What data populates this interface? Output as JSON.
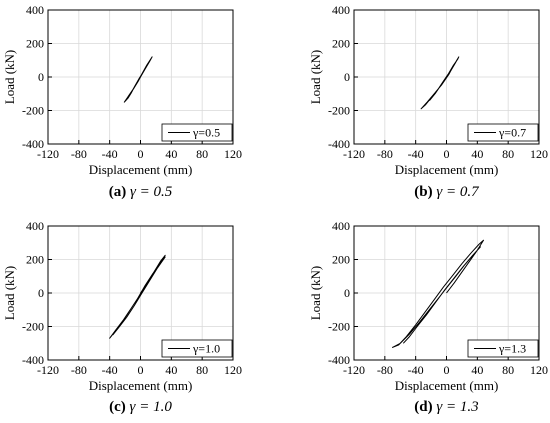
{
  "chart_data": [
    {
      "type": "line",
      "caption_letter": "(a)",
      "caption_rest": " γ = 0.5",
      "xlabel": "Displacement (mm)",
      "ylabel": "Load (kN)",
      "xlim": [
        -120,
        120
      ],
      "ylim": [
        -400,
        400
      ],
      "xticks": [
        -120,
        -80,
        -40,
        0,
        40,
        80,
        120
      ],
      "yticks": [
        -400,
        -200,
        0,
        200,
        400
      ],
      "grid": true,
      "legend_position": "bottom-right",
      "series": [
        {
          "name": "γ=0.5",
          "x": [
            0,
            5,
            10,
            15,
            12,
            5,
            -2,
            -8,
            -12,
            -16,
            -21,
            -18,
            -10,
            -4,
            2,
            8,
            13,
            15,
            9,
            3,
            -3,
            -9,
            -14
          ],
          "y": [
            0,
            40,
            80,
            120,
            95,
            40,
            -10,
            -60,
            -95,
            -125,
            -150,
            -130,
            -75,
            -30,
            20,
            70,
            105,
            120,
            75,
            25,
            -25,
            -70,
            -105
          ]
        }
      ]
    },
    {
      "type": "line",
      "caption_letter": "(b)",
      "caption_rest": " γ = 0.7",
      "xlabel": "Displacement (mm)",
      "ylabel": "Load (kN)",
      "xlim": [
        -120,
        120
      ],
      "ylim": [
        -400,
        400
      ],
      "xticks": [
        -120,
        -80,
        -40,
        0,
        40,
        80,
        120
      ],
      "yticks": [
        -400,
        -200,
        0,
        200,
        400
      ],
      "grid": true,
      "legend_position": "bottom-right",
      "series": [
        {
          "name": "γ=0.7",
          "x": [
            0,
            6,
            11,
            16,
            12,
            4,
            -4,
            -12,
            -20,
            -27,
            -33,
            -25,
            -15,
            -6,
            3,
            10,
            15,
            9,
            2,
            -6,
            -14,
            -22
          ],
          "y": [
            0,
            40,
            80,
            120,
            90,
            30,
            -25,
            -80,
            -125,
            -165,
            -190,
            -150,
            -95,
            -45,
            15,
            75,
            110,
            70,
            15,
            -40,
            -95,
            -140
          ]
        }
      ]
    },
    {
      "type": "line",
      "caption_letter": "(c)",
      "caption_rest": " γ = 1.0",
      "xlabel": "Displacement (mm)",
      "ylabel": "Load (kN)",
      "xlim": [
        -120,
        120
      ],
      "ylim": [
        -400,
        400
      ],
      "xticks": [
        -120,
        -80,
        -40,
        0,
        40,
        80,
        120
      ],
      "yticks": [
        -400,
        -200,
        0,
        200,
        400
      ],
      "grid": true,
      "legend_position": "bottom-right",
      "series": [
        {
          "name": "γ=1.0",
          "x": [
            0,
            8,
            16,
            24,
            32,
            26,
            18,
            8,
            -2,
            -12,
            -22,
            -32,
            -40,
            -34,
            -24,
            -14,
            -4,
            6,
            16,
            26,
            32,
            22,
            12,
            2,
            -8,
            -18,
            -28,
            -36
          ],
          "y": [
            0,
            55,
            110,
            165,
            225,
            190,
            130,
            55,
            -20,
            -90,
            -160,
            -220,
            -270,
            -235,
            -175,
            -105,
            -35,
            45,
            115,
            180,
            215,
            150,
            75,
            0,
            -75,
            -145,
            -205,
            -250
          ]
        }
      ]
    },
    {
      "type": "line",
      "caption_letter": "(d)",
      "caption_rest": " γ = 1.3",
      "xlabel": "Displacement (mm)",
      "ylabel": "Load (kN)",
      "xlim": [
        -120,
        120
      ],
      "ylim": [
        -400,
        400
      ],
      "xticks": [
        -120,
        -80,
        -40,
        0,
        40,
        80,
        120
      ],
      "yticks": [
        -400,
        -200,
        0,
        200,
        400
      ],
      "grid": true,
      "legend_position": "bottom-right",
      "series": [
        {
          "name": "γ=1.3",
          "x": [
            0,
            10,
            20,
            30,
            40,
            48,
            42,
            32,
            20,
            8,
            -4,
            -16,
            -28,
            -40,
            -52,
            -62,
            -70,
            -60,
            -48,
            -36,
            -24,
            -12,
            0,
            12,
            24,
            36,
            44,
            34,
            22,
            10,
            -2,
            -14,
            -26,
            -38,
            -48,
            -56
          ],
          "y": [
            0,
            60,
            125,
            190,
            255,
            315,
            290,
            240,
            175,
            105,
            35,
            -40,
            -115,
            -190,
            -260,
            -310,
            -325,
            -300,
            -245,
            -180,
            -110,
            -40,
            30,
            100,
            170,
            235,
            275,
            225,
            160,
            90,
            20,
            -55,
            -130,
            -200,
            -260,
            -300
          ]
        }
      ]
    }
  ]
}
